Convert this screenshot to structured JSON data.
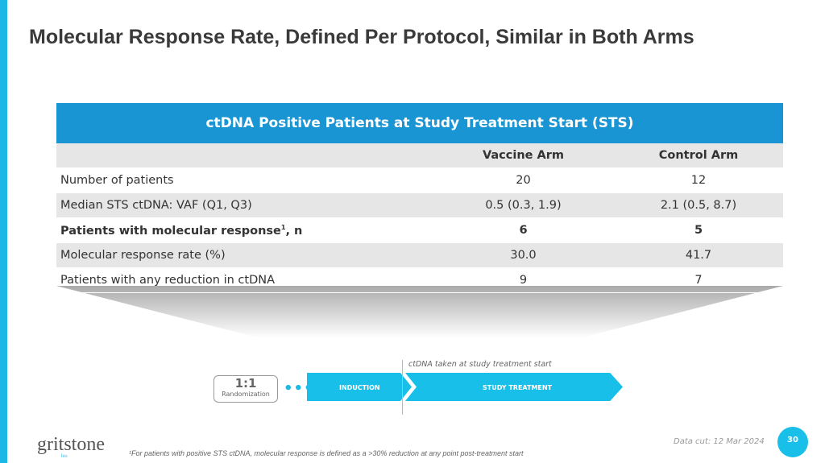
{
  "title": "Molecular Response Rate, Defined Per Protocol, Similar in Both Arms",
  "table": {
    "header": "ctDNA Positive Patients at Study Treatment Start (STS)",
    "columns": [
      "",
      "Vaccine Arm",
      "Control Arm"
    ],
    "rows": [
      [
        "Number of patients",
        "20",
        "12"
      ],
      [
        "Median STS ctDNA: VAF (Q1, Q3)",
        "0.5 (0.3, 1.9)",
        "2.1 (0.5, 8.7)"
      ],
      [
        "Patients with molecular response",
        "6",
        "5"
      ],
      [
        "Molecular response rate (%)",
        "30.0",
        "41.7"
      ],
      [
        "Patients with any reduction in ctDNA",
        "9",
        "7"
      ]
    ],
    "row3_sup": "1",
    "row3_suffix": ", n"
  },
  "diagram": {
    "ratio": "1:1",
    "randomization": "Randomization",
    "dots": "•••",
    "induction": "INDUCTION",
    "study_treatment": "STUDY TREATMENT",
    "caption": "ctDNA taken at study treatment start"
  },
  "footer": {
    "logo": "gritstone",
    "logo_sub": "bio",
    "footnote": "¹For patients with positive STS ctDNA, molecular response is defined as a >30% reduction at any point post-treatment start",
    "data_cut": "Data cut: 12 Mar 2024",
    "page": "30"
  },
  "colors": {
    "accent": "#18bfe8",
    "table_header": "#1a95d3"
  }
}
